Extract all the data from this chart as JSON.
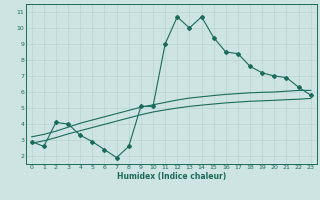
{
  "xlabel": "Humidex (Indice chaleur)",
  "ylabel": "",
  "bg_color": "#cde4e2",
  "line_color": "#1a6b5a",
  "grid_color": "#b8d4d0",
  "xlim": [
    -0.5,
    23.5
  ],
  "ylim": [
    1.5,
    11.5
  ],
  "xticks": [
    0,
    1,
    2,
    3,
    4,
    5,
    6,
    7,
    8,
    9,
    10,
    11,
    12,
    13,
    14,
    15,
    16,
    17,
    18,
    19,
    20,
    21,
    22,
    23
  ],
  "yticks": [
    2,
    3,
    4,
    5,
    6,
    7,
    8,
    9,
    10,
    11
  ],
  "line1_x": [
    0,
    1,
    2,
    3,
    4,
    5,
    6,
    7,
    8,
    9,
    10,
    11,
    12,
    13,
    14,
    15,
    16,
    17,
    18,
    19,
    20,
    21,
    22,
    23
  ],
  "line1_y": [
    2.9,
    2.6,
    4.1,
    4.0,
    3.3,
    2.9,
    2.4,
    1.9,
    2.6,
    5.1,
    5.1,
    9.0,
    10.7,
    10.0,
    10.7,
    9.4,
    8.5,
    8.4,
    7.6,
    7.2,
    7.0,
    6.9,
    6.3,
    5.8
  ],
  "line2_x": [
    0,
    1,
    2,
    3,
    4,
    5,
    6,
    7,
    8,
    9,
    10,
    11,
    12,
    13,
    14,
    15,
    16,
    17,
    18,
    19,
    20,
    21,
    22,
    23
  ],
  "line2_y": [
    3.2,
    3.35,
    3.55,
    3.8,
    4.05,
    4.25,
    4.45,
    4.65,
    4.85,
    5.05,
    5.2,
    5.35,
    5.5,
    5.62,
    5.7,
    5.78,
    5.85,
    5.9,
    5.95,
    5.98,
    6.0,
    6.05,
    6.1,
    6.1
  ],
  "line3_x": [
    0,
    1,
    2,
    3,
    4,
    5,
    6,
    7,
    8,
    9,
    10,
    11,
    12,
    13,
    14,
    15,
    16,
    17,
    18,
    19,
    20,
    21,
    22,
    23
  ],
  "line3_y": [
    2.8,
    2.95,
    3.15,
    3.38,
    3.58,
    3.78,
    3.98,
    4.18,
    4.38,
    4.58,
    4.75,
    4.88,
    5.0,
    5.1,
    5.18,
    5.25,
    5.32,
    5.37,
    5.42,
    5.45,
    5.48,
    5.52,
    5.55,
    5.6
  ]
}
